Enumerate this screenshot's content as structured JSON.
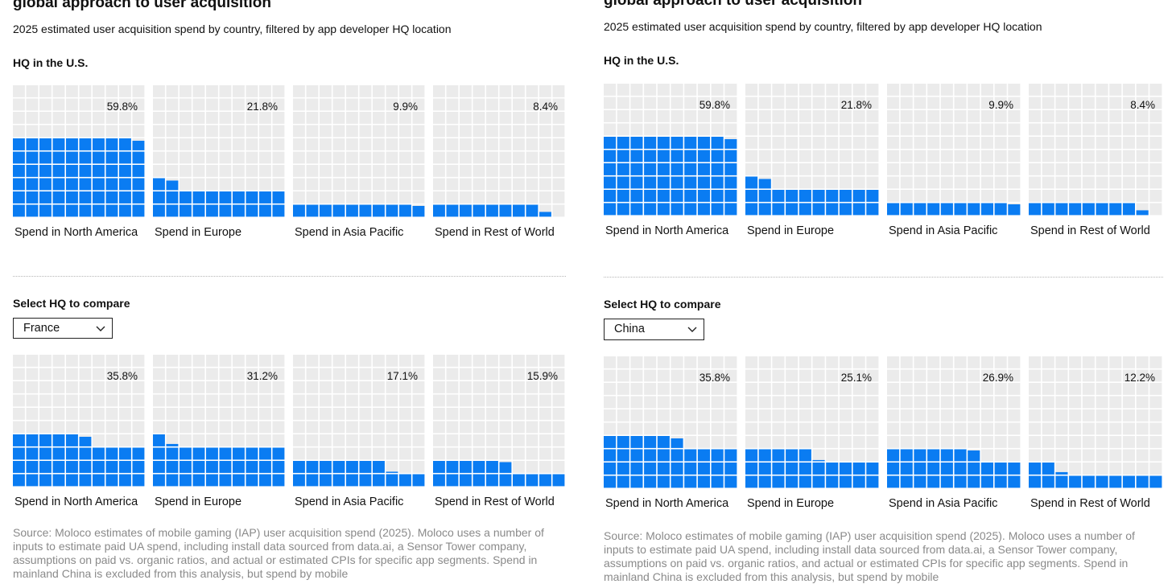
{
  "panels": [
    {
      "title": "global approach to user acquisition",
      "subtitle": "2025 estimated user acquisition spend by country, filtered by app developer HQ location",
      "hq_label": "HQ in the U.S.",
      "hq_chart": {
        "type": "waffle",
        "categories": [
          "Spend in North America",
          "Spend in Europe",
          "Spend in Asia Pacific",
          "Spend in Rest of World"
        ],
        "values": [
          59.8,
          21.8,
          9.9,
          8.4
        ],
        "value_labels": [
          "59.8%",
          "21.8%",
          "9.9%",
          "8.4%"
        ],
        "color": "#0a7cf2"
      },
      "compare_label": "Select HQ to compare",
      "selected": "France",
      "compare_chart": {
        "type": "waffle",
        "categories": [
          "Spend in North America",
          "Spend in Europe",
          "Spend in Asia Pacific",
          "Spend in Rest of World"
        ],
        "values": [
          35.8,
          31.2,
          17.1,
          15.9
        ],
        "value_labels": [
          "35.8%",
          "31.2%",
          "17.1%",
          "15.9%"
        ],
        "color": "#0a7cf2"
      },
      "source": "Source: Moloco estimates of mobile gaming (IAP) user acquisition spend (2025). Moloco uses a number of inputs to estimate paid UA spend, including install data sourced from data.ai, a Sensor Tower company, assumptions on paid vs. organic ratios, and actual or estimated CPIs for specific app segments. Spend in mainland China is excluded from this analysis, but spend by mobile"
    },
    {
      "title": "global approach to user acquisition",
      "subtitle": "2025 estimated user acquisition spend by country, filtered by app developer HQ location",
      "hq_label": "HQ in the U.S.",
      "hq_chart": {
        "type": "waffle",
        "categories": [
          "Spend in North America",
          "Spend in Europe",
          "Spend in Asia Pacific",
          "Spend in Rest of World"
        ],
        "values": [
          59.8,
          21.8,
          9.9,
          8.4
        ],
        "value_labels": [
          "59.8%",
          "21.8%",
          "9.9%",
          "8.4%"
        ],
        "color": "#0a7cf2"
      },
      "compare_label": "Select HQ to compare",
      "selected": "China",
      "compare_chart": {
        "type": "waffle",
        "categories": [
          "Spend in North America",
          "Spend in Europe",
          "Spend in Asia Pacific",
          "Spend in Rest of World"
        ],
        "values": [
          35.8,
          25.1,
          26.9,
          12.2
        ],
        "value_labels": [
          "35.8%",
          "25.1%",
          "26.9%",
          "12.2%"
        ],
        "color": "#0a7cf2"
      },
      "source": "Source: Moloco estimates of mobile gaming (IAP) user acquisition spend (2025). Moloco uses a number of inputs to estimate paid UA spend, including install data sourced from data.ai, a Sensor Tower company, assumptions on paid vs. organic ratios, and actual or estimated CPIs for specific app segments. Spend in mainland China is excluded from this analysis, but spend by mobile"
    }
  ]
}
